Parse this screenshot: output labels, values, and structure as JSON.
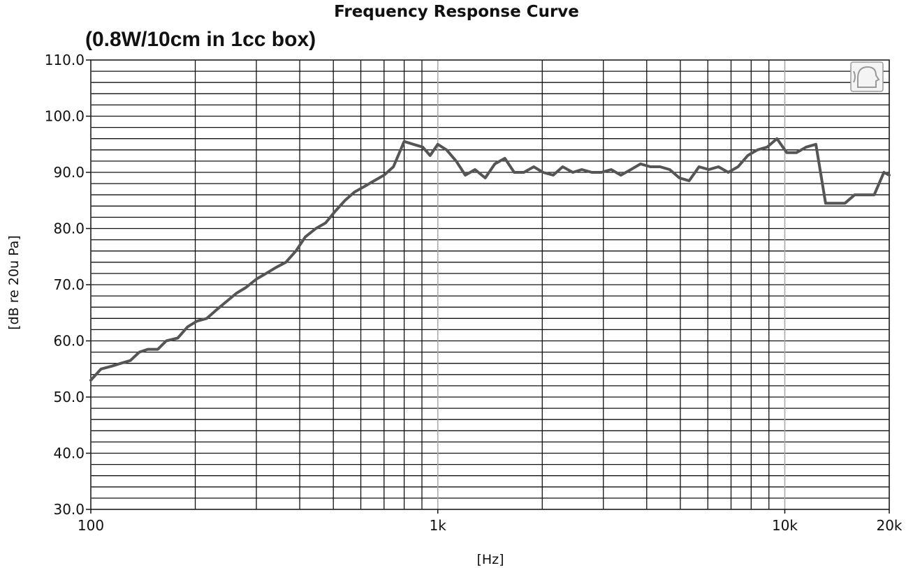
{
  "chart_data": {
    "type": "line",
    "title": "Frequency Response Curve",
    "subtitle": "(0.8W/10cm in 1cc box)",
    "xlabel": "[Hz]",
    "ylabel": "[dB re 20u Pa]",
    "xscale": "log",
    "xlim": [
      100,
      20000
    ],
    "ylim": [
      30,
      110
    ],
    "x_ticks": [
      {
        "value": 100,
        "label": "100"
      },
      {
        "value": 1000,
        "label": "1k"
      },
      {
        "value": 10000,
        "label": "10k"
      },
      {
        "value": 20000,
        "label": "20k"
      }
    ],
    "y_ticks": [
      {
        "value": 110,
        "label": "110.0"
      },
      {
        "value": 100,
        "label": "100.0"
      },
      {
        "value": 90,
        "label": "90.0"
      },
      {
        "value": 80,
        "label": "80.0"
      },
      {
        "value": 70,
        "label": "70.0"
      },
      {
        "value": 60,
        "label": "60.0"
      },
      {
        "value": 50,
        "label": "50.0"
      },
      {
        "value": 40,
        "label": "40.0"
      },
      {
        "value": 30,
        "label": "30.0"
      }
    ],
    "grid": true,
    "line_color": "#555555",
    "series": [
      {
        "x": [
          100,
          107,
          115,
          122,
          130,
          138,
          146,
          156,
          165,
          178,
          190,
          202,
          216,
          230,
          246,
          263,
          280,
          300,
          320,
          340,
          365,
          390,
          415,
          445,
          475,
          505,
          540,
          575,
          615,
          655,
          700,
          745,
          800,
          850,
          905,
          950,
          1000,
          1060,
          1130,
          1200,
          1280,
          1370,
          1460,
          1560,
          1660,
          1770,
          1890,
          2010,
          2150,
          2290,
          2450,
          2600,
          2780,
          2960,
          3160,
          3370,
          3600,
          3840,
          4100,
          4370,
          4660,
          4970,
          5300,
          5660,
          6040,
          6440,
          6870,
          7330,
          7820,
          8340,
          8900,
          9490,
          10130,
          10800,
          11520,
          12290,
          13110,
          14000,
          14900,
          15900,
          17000,
          18100,
          19300,
          20000
        ],
        "y": [
          53.0,
          55.0,
          55.5,
          56.0,
          56.5,
          58.0,
          58.5,
          58.5,
          60.0,
          60.5,
          62.5,
          63.5,
          64.0,
          65.5,
          67.0,
          68.5,
          69.5,
          71.0,
          72.0,
          73.0,
          74.0,
          76.0,
          78.5,
          80.0,
          81.0,
          83.0,
          85.0,
          86.5,
          87.5,
          88.5,
          89.5,
          91.0,
          95.5,
          95.0,
          94.5,
          93.0,
          95.0,
          94.0,
          92.0,
          89.5,
          90.5,
          89.0,
          91.5,
          92.5,
          90.0,
          90.0,
          91.0,
          90.0,
          89.5,
          91.0,
          90.0,
          90.5,
          90.0,
          90.0,
          90.5,
          89.5,
          90.5,
          91.5,
          91.0,
          91.0,
          90.5,
          89.0,
          88.5,
          91.0,
          90.5,
          91.0,
          90.0,
          91.0,
          93.0,
          94.0,
          94.5,
          96.0,
          93.5,
          93.5,
          94.5,
          95.0,
          84.5,
          84.5,
          84.5,
          86.0,
          86.0,
          86.0,
          90.0,
          89.5
        ]
      }
    ]
  }
}
